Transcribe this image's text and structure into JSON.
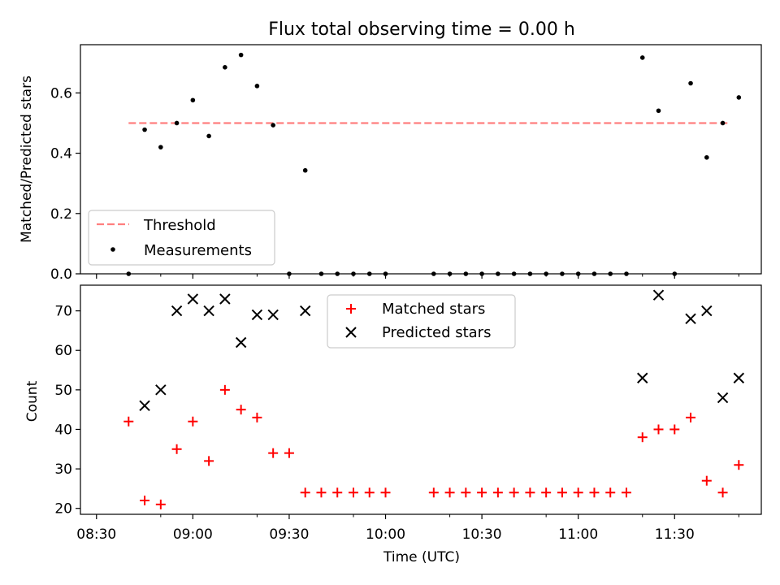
{
  "figure": {
    "title": "Flux total observing time = 0.00 h",
    "xlabel": "Time (UTC)"
  },
  "chart_data": [
    {
      "type": "scatter",
      "ylabel": "Matched/Predicted stars",
      "ylim": [
        0,
        0.76
      ],
      "yticks": [
        0.0,
        0.2,
        0.4,
        0.6
      ],
      "ytick_labels": [
        "0.0",
        "0.2",
        "0.4",
        "0.6"
      ],
      "legend_position": "lower-left",
      "threshold": {
        "name": "Threshold",
        "value": 0.5,
        "x_start": "08:40",
        "x_end": "11:47",
        "color": "#ff7f7f",
        "style": "dashed"
      },
      "series": [
        {
          "name": "Measurements",
          "color": "#000000",
          "marker": "dot",
          "points": [
            [
              "08:40",
              0.0
            ],
            [
              "08:45",
              0.478
            ],
            [
              "08:50",
              0.42
            ],
            [
              "08:55",
              0.5
            ],
            [
              "09:00",
              0.576
            ],
            [
              "09:05",
              0.457
            ],
            [
              "09:10",
              0.685
            ],
            [
              "09:15",
              0.726
            ],
            [
              "09:20",
              0.623
            ],
            [
              "09:25",
              0.493
            ],
            [
              "09:30",
              0.0
            ],
            [
              "09:35",
              0.343
            ],
            [
              "09:40",
              0.0
            ],
            [
              "09:45",
              0.0
            ],
            [
              "09:50",
              0.0
            ],
            [
              "09:55",
              0.0
            ],
            [
              "10:00",
              0.0
            ],
            [
              "10:15",
              0.0
            ],
            [
              "10:20",
              0.0
            ],
            [
              "10:25",
              0.0
            ],
            [
              "10:30",
              0.0
            ],
            [
              "10:35",
              0.0
            ],
            [
              "10:40",
              0.0
            ],
            [
              "10:45",
              0.0
            ],
            [
              "10:50",
              0.0
            ],
            [
              "10:55",
              0.0
            ],
            [
              "11:00",
              0.0
            ],
            [
              "11:05",
              0.0
            ],
            [
              "11:10",
              0.0
            ],
            [
              "11:15",
              0.0
            ],
            [
              "11:20",
              0.717
            ],
            [
              "11:25",
              0.541
            ],
            [
              "11:30",
              0.0
            ],
            [
              "11:35",
              0.632
            ],
            [
              "11:40",
              0.386
            ],
            [
              "11:45",
              0.5
            ],
            [
              "11:50",
              0.585
            ]
          ]
        }
      ]
    },
    {
      "type": "scatter",
      "ylabel": "Count",
      "ylim": [
        18.5,
        76.5
      ],
      "yticks": [
        20,
        30,
        40,
        50,
        60,
        70
      ],
      "ytick_labels": [
        "20",
        "30",
        "40",
        "50",
        "60",
        "70"
      ],
      "legend_position": "upper-center",
      "series": [
        {
          "name": "Matched stars",
          "color": "#ff0000",
          "marker": "plus",
          "points": [
            [
              "08:40",
              42
            ],
            [
              "08:45",
              22
            ],
            [
              "08:50",
              21
            ],
            [
              "08:55",
              35
            ],
            [
              "09:00",
              42
            ],
            [
              "09:05",
              32
            ],
            [
              "09:10",
              50
            ],
            [
              "09:15",
              45
            ],
            [
              "09:20",
              43
            ],
            [
              "09:25",
              34
            ],
            [
              "09:30",
              34
            ],
            [
              "09:35",
              24
            ],
            [
              "09:40",
              24
            ],
            [
              "09:45",
              24
            ],
            [
              "09:50",
              24
            ],
            [
              "09:55",
              24
            ],
            [
              "10:00",
              24
            ],
            [
              "10:15",
              24
            ],
            [
              "10:20",
              24
            ],
            [
              "10:25",
              24
            ],
            [
              "10:30",
              24
            ],
            [
              "10:35",
              24
            ],
            [
              "10:40",
              24
            ],
            [
              "10:45",
              24
            ],
            [
              "10:50",
              24
            ],
            [
              "10:55",
              24
            ],
            [
              "11:00",
              24
            ],
            [
              "11:05",
              24
            ],
            [
              "11:10",
              24
            ],
            [
              "11:15",
              24
            ],
            [
              "11:20",
              38
            ],
            [
              "11:25",
              40
            ],
            [
              "11:30",
              40
            ],
            [
              "11:35",
              43
            ],
            [
              "11:40",
              27
            ],
            [
              "11:45",
              24
            ],
            [
              "11:50",
              31
            ]
          ]
        },
        {
          "name": "Predicted stars",
          "color": "#000000",
          "marker": "x",
          "points": [
            [
              "08:45",
              46
            ],
            [
              "08:50",
              50
            ],
            [
              "08:55",
              70
            ],
            [
              "09:00",
              73
            ],
            [
              "09:05",
              70
            ],
            [
              "09:10",
              73
            ],
            [
              "09:15",
              62
            ],
            [
              "09:20",
              69
            ],
            [
              "09:25",
              69
            ],
            [
              "09:35",
              70
            ],
            [
              "11:20",
              53
            ],
            [
              "11:25",
              74
            ],
            [
              "11:35",
              68
            ],
            [
              "11:40",
              70
            ],
            [
              "11:45",
              48
            ],
            [
              "11:50",
              53
            ]
          ]
        }
      ]
    }
  ],
  "x_axis": {
    "xlim": [
      "08:25",
      "11:57"
    ],
    "tick_labels": [
      "08:30",
      "09:00",
      "09:30",
      "10:00",
      "10:30",
      "11:00",
      "11:30"
    ],
    "minor_ticks": [
      "08:30",
      "09:00",
      "09:30",
      "10:00",
      "10:30",
      "11:00",
      "11:30"
    ]
  }
}
